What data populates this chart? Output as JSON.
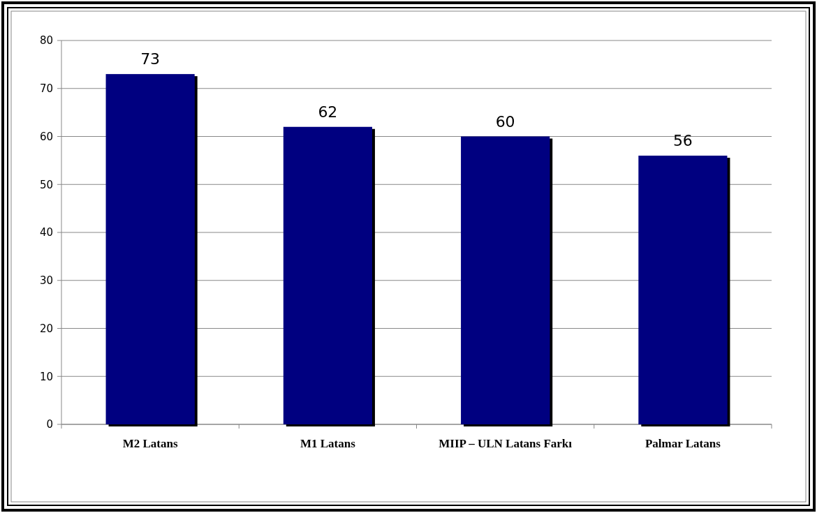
{
  "chart_data": {
    "type": "bar",
    "categories": [
      "M2 Latans",
      "M1 Latans",
      "MIIP – ULN Latans Farkı",
      "Palmar Latans"
    ],
    "values": [
      73,
      62,
      60,
      56
    ],
    "color": "#000080",
    "ylim": [
      0,
      80
    ],
    "yticks": [
      0,
      10,
      20,
      30,
      40,
      50,
      60,
      70,
      80
    ],
    "grid": "y",
    "data_labels": true
  }
}
